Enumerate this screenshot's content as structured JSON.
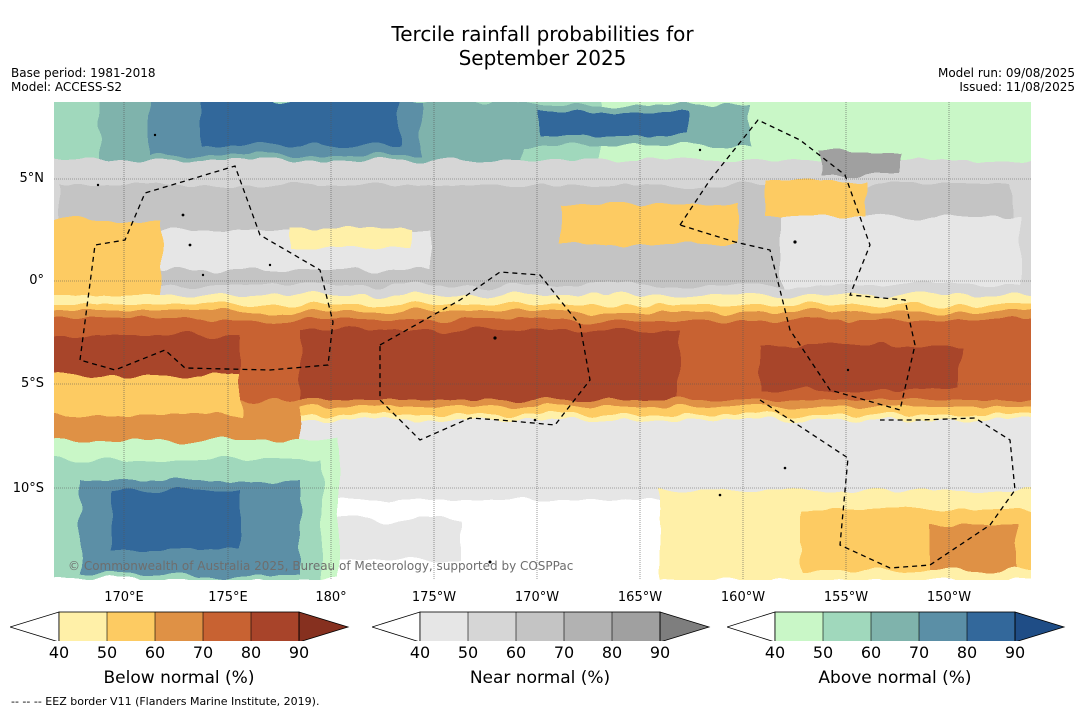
{
  "title_line1": "Tercile rainfall probabilities for",
  "title_line2": "September 2025",
  "meta_left": {
    "base_period": "Base period: 1981-2018",
    "model": "Model: ACCESS-S2"
  },
  "meta_right": {
    "model_run": "Model run: 09/08/2025",
    "issued": "Issued: 11/08/2025"
  },
  "copyright": "© Commonwealth of Australia 2025, Bureau of Meteorology, supported by COSPPac",
  "lat_labels": [
    "5°N",
    "0°",
    "5°S",
    "10°S"
  ],
  "lon_labels": [
    "170°E",
    "175°E",
    "180°",
    "175°W",
    "170°W",
    "165°W",
    "160°W",
    "155°W",
    "150°W"
  ],
  "colorbars": [
    {
      "label": "Below normal (%)",
      "ticks": [
        "40",
        "50",
        "60",
        "70",
        "80",
        "90"
      ],
      "colors": [
        "#fff0a8",
        "#fdcb62",
        "#df9145",
        "#c86232",
        "#a8442a",
        "#86301f"
      ]
    },
    {
      "label": "Near normal (%)",
      "ticks": [
        "40",
        "50",
        "60",
        "70",
        "80",
        "90"
      ],
      "colors": [
        "#e6e6e6",
        "#d6d6d6",
        "#c4c4c4",
        "#b2b2b2",
        "#a0a0a0",
        "#7e7e7e"
      ]
    },
    {
      "label": "Above normal (%)",
      "ticks": [
        "40",
        "50",
        "60",
        "70",
        "80",
        "90"
      ],
      "colors": [
        "#c9f7c7",
        "#a0d8bc",
        "#7fb3ac",
        "#5b8fa6",
        "#33689b",
        "#1f4d86"
      ]
    }
  ],
  "footer": "-- -- -- EEZ border V11 (Flanders Marine Institute, 2019)."
}
